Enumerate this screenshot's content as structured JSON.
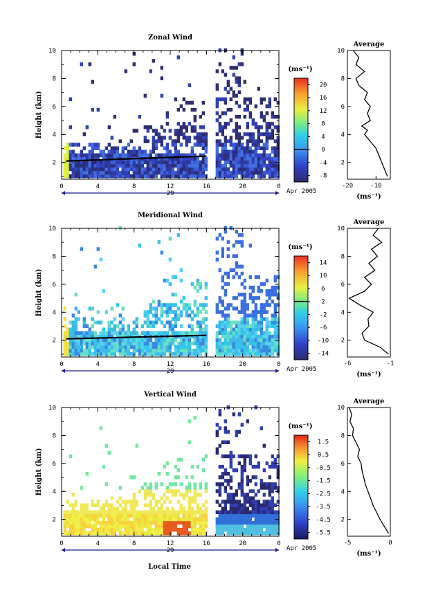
{
  "footer": {
    "xlabel": "Local Time",
    "date_label": "Apr 2005",
    "day_label": "29"
  },
  "chart_data": [
    {
      "type": "heatmap",
      "title": "Zonal Wind",
      "ylabel": "Height (km)",
      "units": "(ms⁻¹)",
      "x_ticks": [
        "0",
        "4",
        "8",
        "12",
        "16",
        "20",
        "0"
      ],
      "y_ticks": [
        "2",
        "4",
        "6",
        "8",
        "10"
      ],
      "ylim": [
        0.8,
        10
      ],
      "xlim_hours": [
        0,
        24
      ],
      "data_gap_hours": [
        16,
        17
      ],
      "colorbar": {
        "ticks": [
          "20",
          "16",
          "12",
          "8",
          "4",
          "0",
          "-4",
          "-8"
        ],
        "range": [
          -10,
          22
        ],
        "zero_line": 0
      },
      "avg_profile": {
        "title": "Average",
        "xlabel": "(ms⁻¹)",
        "x_ticks": [
          "-20",
          "-10"
        ],
        "xlim": [
          -20,
          -5
        ],
        "height_km": [
          1.0,
          1.5,
          2.0,
          2.5,
          3.0,
          3.5,
          4.0,
          4.3,
          4.6,
          5.0,
          5.5,
          6.0,
          6.5,
          7.0,
          7.5,
          8.0,
          8.5,
          9.0,
          9.5,
          10.0
        ],
        "values": [
          -6,
          -7,
          -8,
          -9,
          -10,
          -12,
          -14,
          -13,
          -15,
          -12,
          -13,
          -12,
          -14,
          -13,
          -16,
          -17,
          -14,
          -17,
          -16,
          -18
        ]
      }
    },
    {
      "type": "heatmap",
      "title": "Meridional Wind",
      "ylabel": "Height (km)",
      "units": "(ms⁻¹)",
      "x_ticks": [
        "0",
        "4",
        "8",
        "12",
        "16",
        "20",
        "0"
      ],
      "y_ticks": [
        "2",
        "4",
        "6",
        "8",
        "10"
      ],
      "ylim": [
        0.8,
        10
      ],
      "xlim_hours": [
        0,
        24
      ],
      "data_gap_hours": [
        16,
        17
      ],
      "colorbar": {
        "ticks": [
          "14",
          "10",
          "6",
          "2",
          "-2",
          "-6",
          "-10",
          "-14"
        ],
        "range": [
          -16,
          16
        ],
        "zero_line": 2
      },
      "avg_profile": {
        "title": "Average",
        "xlabel": "(ms⁻¹)",
        "x_ticks": [
          "-6",
          "-1"
        ],
        "xlim": [
          -6,
          -1
        ],
        "height_km": [
          1.0,
          1.5,
          2.0,
          2.5,
          3.0,
          3.5,
          4.0,
          4.5,
          5.0,
          5.5,
          6.0,
          6.5,
          7.0,
          7.5,
          8.0,
          8.5,
          9.0,
          9.5,
          10.0
        ],
        "values": [
          -1.2,
          -2.2,
          -4.0,
          -4.3,
          -3.5,
          -3.6,
          -3.0,
          -4.5,
          -5.8,
          -4.0,
          -3.2,
          -4.0,
          -2.8,
          -3.5,
          -2.5,
          -3.2,
          -2.0,
          -3.0,
          -2.4
        ]
      }
    },
    {
      "type": "heatmap",
      "title": "Vertical Wind",
      "ylabel": "Height (km)",
      "units": "(ms⁻¹)",
      "x_ticks": [
        "0",
        "4",
        "8",
        "12",
        "16",
        "20",
        "0"
      ],
      "y_ticks": [
        "2",
        "4",
        "6",
        "8",
        "10"
      ],
      "ylim": [
        0.8,
        10
      ],
      "xlim_hours": [
        0,
        24
      ],
      "data_gap_hours": [
        16,
        17
      ],
      "colorbar": {
        "ticks": [
          "1.5",
          "0.5",
          "-0.5",
          "-1.5",
          "-2.5",
          "-3.5",
          "-4.5",
          "-5.5"
        ],
        "range": [
          -6,
          2
        ]
      },
      "avg_profile": {
        "title": "Average",
        "xlabel": "(ms⁻¹)",
        "x_ticks": [
          "-5",
          "0"
        ],
        "xlim": [
          -5,
          0
        ],
        "height_km": [
          1.0,
          1.5,
          2.0,
          2.5,
          3.0,
          3.5,
          4.0,
          4.5,
          5.0,
          5.5,
          6.0,
          6.5,
          7.0,
          7.5,
          8.0,
          8.5,
          9.0,
          9.5,
          10.0
        ],
        "values": [
          -0.2,
          -0.7,
          -1.2,
          -1.6,
          -2.0,
          -2.3,
          -2.6,
          -2.9,
          -3.1,
          -3.3,
          -3.4,
          -3.8,
          -3.6,
          -4.0,
          -4.4,
          -4.3,
          -4.7,
          -4.5,
          -4.8
        ]
      }
    }
  ]
}
